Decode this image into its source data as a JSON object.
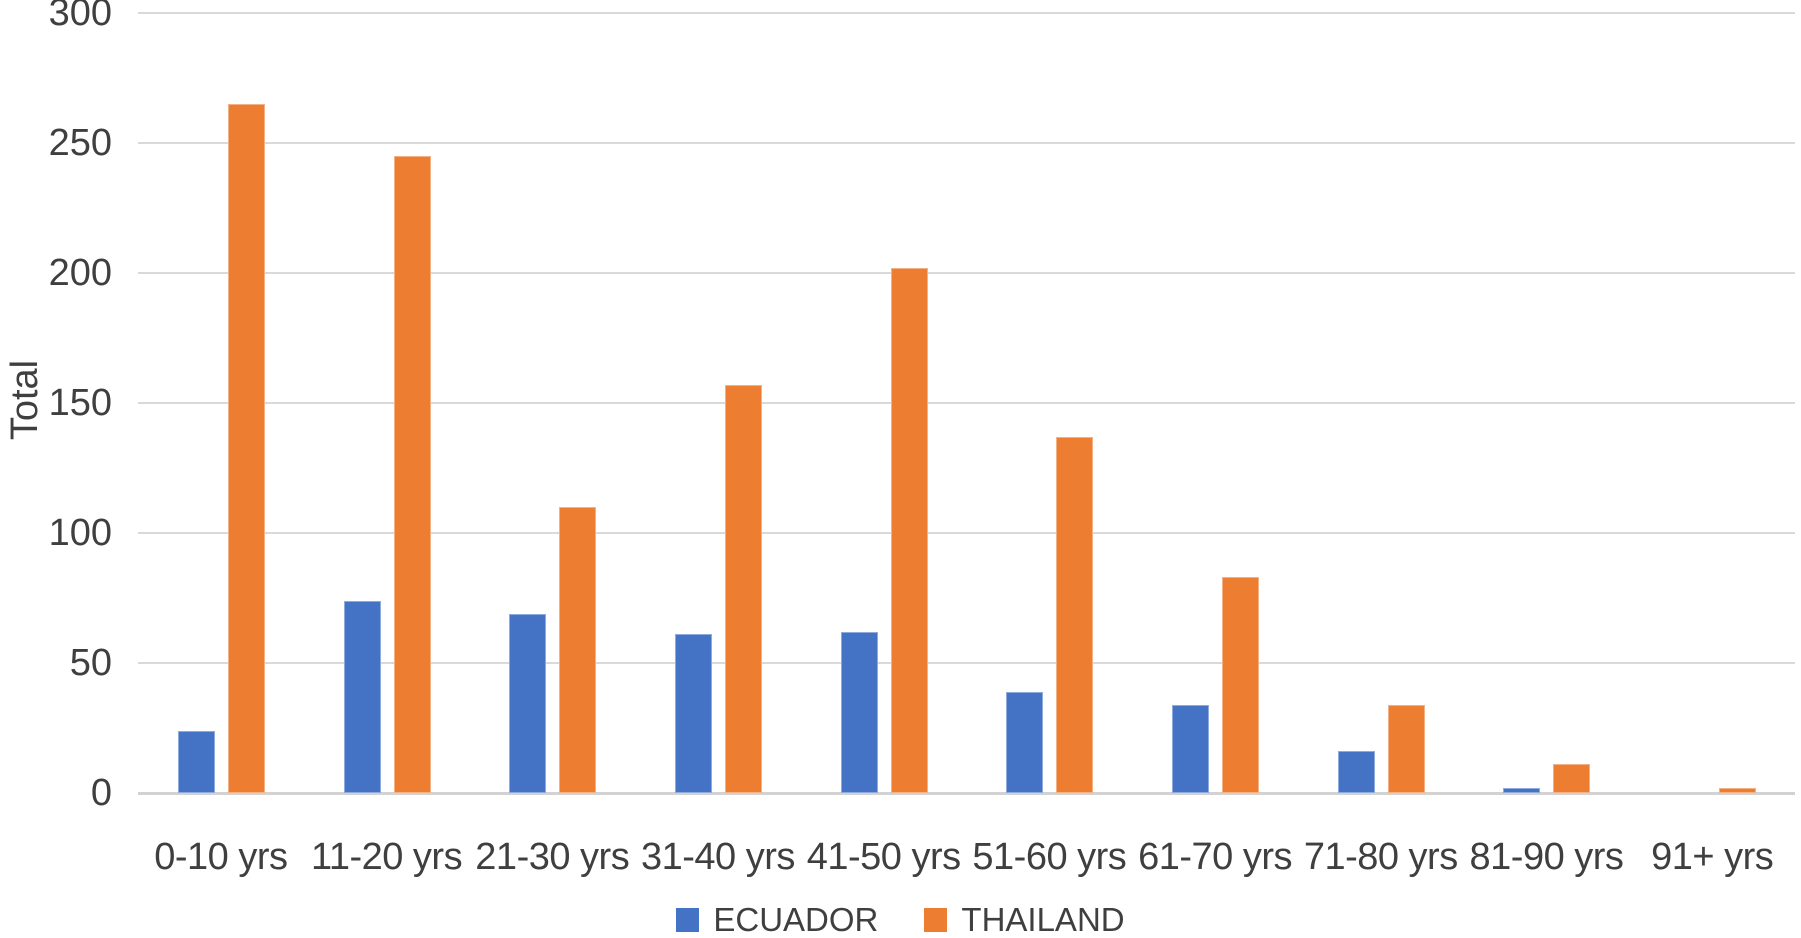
{
  "chart_data": {
    "type": "bar",
    "title": "",
    "ylabel": "Total",
    "xlabel": "",
    "categories": [
      "0-10 yrs",
      "11-20 yrs",
      "21-30 yrs",
      "31-40 yrs",
      "41-50 yrs",
      "51-60 yrs",
      "61-70 yrs",
      "71-80 yrs",
      "81-90 yrs",
      "91+ yrs"
    ],
    "series": [
      {
        "name": "ECUADOR",
        "color": "#4472C4",
        "border_color": "#8FAADC",
        "values": [
          24,
          74,
          69,
          61,
          62,
          39,
          34,
          16,
          2,
          0
        ]
      },
      {
        "name": "THAILAND",
        "color": "#ED7D31",
        "border_color": "#F4B183",
        "values": [
          265,
          245,
          110,
          157,
          202,
          137,
          83,
          34,
          11,
          2
        ]
      }
    ],
    "ylim": [
      0,
      300
    ],
    "yticks": [
      300,
      250,
      200,
      150,
      100,
      50,
      0
    ],
    "grid": true,
    "legend_position": "bottom"
  },
  "colors": {
    "background": "#FFFFFF",
    "gridline": "#D9D9D9",
    "axis_line": "#D2D2D2",
    "text": "#3F3F3F"
  }
}
